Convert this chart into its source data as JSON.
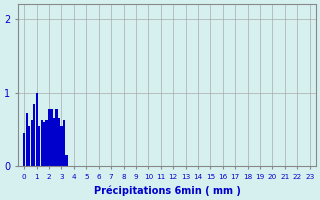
{
  "xlabel": "Précipitations 6min ( mm )",
  "bar_color": "#0000cc",
  "background_color": "#d6f0f0",
  "grid_color": "#aaaaaa",
  "tick_color": "#0000cc",
  "label_color": "#0000cc",
  "xlim": [
    -0.5,
    23.5
  ],
  "ylim": [
    0,
    2.2
  ],
  "yticks": [
    0,
    1,
    2
  ],
  "xtick_labels": [
    "0",
    "1",
    "2",
    "3",
    "4",
    "5",
    "6",
    "7",
    "8",
    "9",
    "10",
    "11",
    "12",
    "13",
    "14",
    "15",
    "16",
    "17",
    "18",
    "19",
    "20",
    "21",
    "22",
    "23"
  ],
  "bar_positions": [
    0.0,
    0.2,
    0.4,
    0.6,
    0.8,
    1.0,
    1.2,
    1.4,
    1.6,
    1.8,
    2.0,
    2.2,
    2.4,
    2.6,
    2.8,
    3.0,
    3.2,
    3.4
  ],
  "bar_heights": [
    0.45,
    0.72,
    0.55,
    0.62,
    0.85,
    1.0,
    0.55,
    0.62,
    0.6,
    0.62,
    0.78,
    0.78,
    0.65,
    0.78,
    0.65,
    0.55,
    0.62,
    0.15
  ],
  "bar_width": 0.18
}
